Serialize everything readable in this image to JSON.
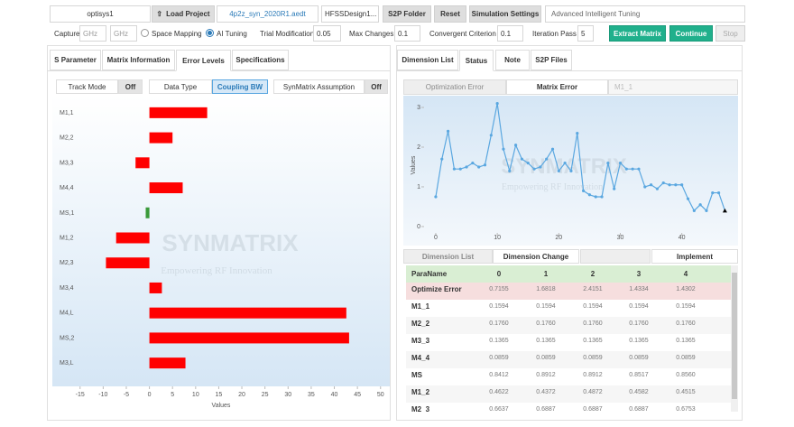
{
  "toolbar": {
    "project_name": "optisys1",
    "load_project": "Load Project",
    "file": "4p2z_syn_2020R1.aedt",
    "design": "HFSSDesign1...",
    "s2p_folder": "S2P Folder",
    "reset": "Reset",
    "simulation_settings": "Simulation Settings",
    "mode": "Advanced Intelligent Tuning"
  },
  "settings": {
    "capture": "Capture",
    "unit_start": "GHz",
    "unit_stop": "GHz",
    "space_mapping": "Space Mapping",
    "ai_tuning": "AI Tuning",
    "trial_modification": "Trial Modification",
    "trial_value": "0.05",
    "max_changes": "Max Changes",
    "max_value": "0.1",
    "convergent": "Convergent Criterion",
    "convergent_value": "0.1",
    "iteration": "Iteration Pass",
    "iteration_value": "5",
    "extract": "Extract Matrix",
    "continue": "Continue",
    "stop": "Stop"
  },
  "left_tabs": [
    "S Parameter",
    "Matrix Information",
    "Error Levels",
    "Specifications"
  ],
  "left_subtabs": {
    "track_mode": "Track Mode",
    "track_off": "Off",
    "data_type": "Data Type",
    "coupling_bw": "Coupling BW",
    "assumption": "SynMatrix Assumption",
    "assumption_off": "Off"
  },
  "right_tabs": [
    "Dimension List",
    "Status",
    "Note",
    "S2P Files"
  ],
  "right_subtabs": [
    "Optimization Error",
    "Matrix Error",
    "M1_1"
  ],
  "bottom_tabs": [
    "Dimension List",
    "Dimension Change",
    "Implement"
  ],
  "table": {
    "header": [
      "ParaName",
      "0",
      "1",
      "2",
      "3",
      "4"
    ],
    "rows": [
      [
        "Optimize Error",
        "0.7155",
        "1.6818",
        "2.4151",
        "1.4334",
        "1.4302"
      ],
      [
        "M1_1",
        "0.1594",
        "0.1594",
        "0.1594",
        "0.1594",
        "0.1594"
      ],
      [
        "M2_2",
        "0.1760",
        "0.1760",
        "0.1760",
        "0.1760",
        "0.1760"
      ],
      [
        "M3_3",
        "0.1365",
        "0.1365",
        "0.1365",
        "0.1365",
        "0.1365"
      ],
      [
        "M4_4",
        "0.0859",
        "0.0859",
        "0.0859",
        "0.0859",
        "0.0859"
      ],
      [
        "MS",
        "0.8412",
        "0.8912",
        "0.8912",
        "0.8517",
        "0.8560"
      ],
      [
        "M1_2",
        "0.4622",
        "0.4372",
        "0.4872",
        "0.4582",
        "0.4515"
      ],
      [
        "M2_3",
        "0.6637",
        "0.6887",
        "0.6887",
        "0.6887",
        "0.6753"
      ]
    ]
  },
  "chart_data": [
    {
      "type": "hbar",
      "watermark": "SYNMATRIX",
      "watermark_subtitle": "Empowering RF Innovation",
      "xlabel": "Values",
      "categories": [
        "M1,1",
        "M2,2",
        "M3,3",
        "M4,4",
        "MS,1",
        "M1,2",
        "M2,3",
        "M3,4",
        "M4,L",
        "MS,2",
        "M3,L"
      ],
      "values": [
        12.5,
        5,
        -3,
        7.2,
        -0.8,
        -7.2,
        -9.4,
        2.7,
        42.6,
        43.2,
        7.8
      ],
      "colors": [
        "#ff0000",
        "#ff0000",
        "#ff0000",
        "#ff0000",
        "#3a9a3a",
        "#ff0000",
        "#ff0000",
        "#ff0000",
        "#ff0000",
        "#ff0000",
        "#ff0000"
      ],
      "xlim": [
        -21,
        52
      ],
      "xticks": [
        -15,
        -10,
        -5,
        0,
        5,
        10,
        15,
        20,
        25,
        30,
        35,
        40,
        45,
        50
      ]
    },
    {
      "type": "line",
      "watermark": "SYNMATRIX",
      "watermark_subtitle": "Empowering RF Innovation",
      "ylabel": "Values",
      "color": "#5aa7e0",
      "x": [
        0,
        1,
        2,
        3,
        4,
        5,
        6,
        7,
        8,
        9,
        10,
        11,
        12,
        13,
        14,
        15,
        16,
        17,
        18,
        19,
        20,
        21,
        22,
        23,
        24,
        25,
        26,
        27,
        28,
        29,
        30,
        31,
        32,
        33,
        34,
        35,
        36,
        37,
        38,
        39,
        40,
        41,
        42,
        43,
        44,
        45,
        46,
        47
      ],
      "values": [
        0.75,
        1.7,
        2.4,
        1.45,
        1.45,
        1.5,
        1.6,
        1.5,
        1.55,
        2.3,
        3.1,
        1.95,
        1.4,
        2.05,
        1.7,
        1.6,
        1.45,
        1.5,
        1.7,
        1.95,
        1.4,
        1.6,
        1.4,
        2.35,
        0.9,
        0.8,
        0.75,
        0.75,
        1.6,
        0.95,
        1.6,
        1.45,
        1.45,
        1.45,
        1.0,
        1.05,
        0.95,
        1.1,
        1.05,
        1.05,
        1.05,
        0.7,
        0.4,
        0.55,
        0.4,
        0.85,
        0.85,
        0.4
      ],
      "xlim": [
        -1.9,
        48.7
      ],
      "ylim": [
        -0.16,
        3.25
      ],
      "xticks": [
        0,
        10,
        20,
        30,
        40
      ],
      "yticks": [
        0,
        1,
        2,
        3
      ]
    }
  ]
}
